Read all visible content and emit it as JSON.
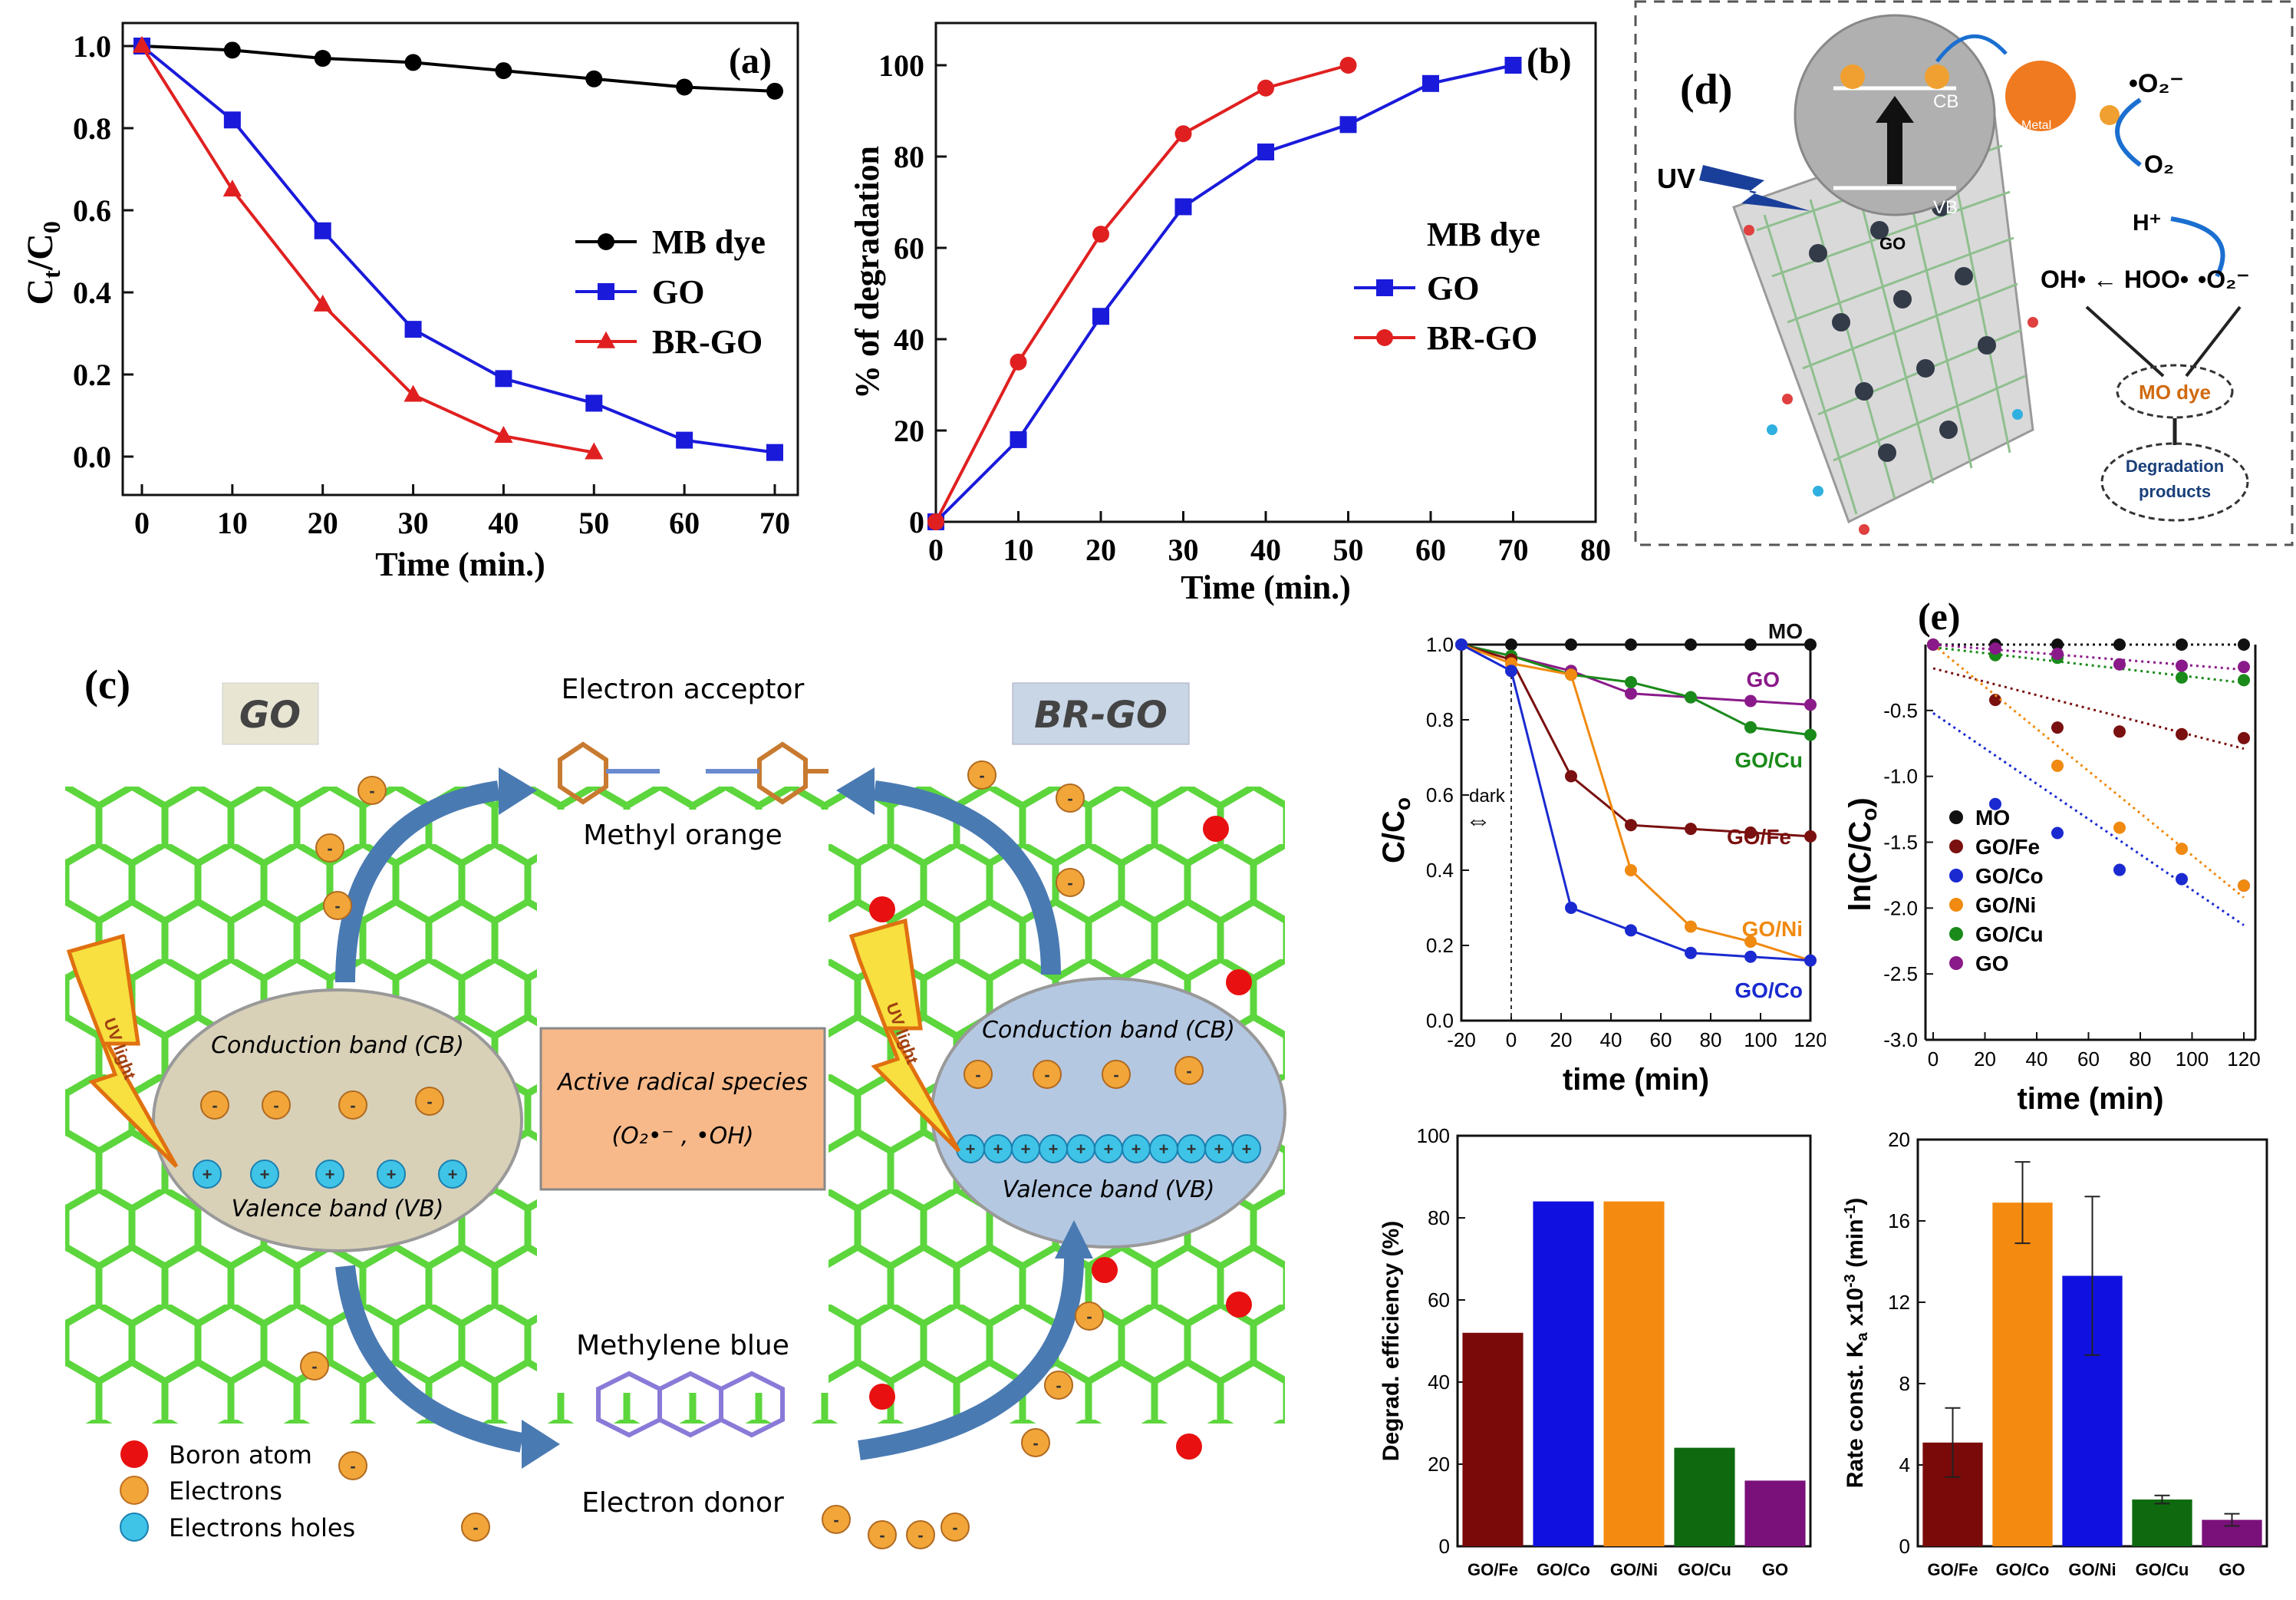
{
  "chart_data": [
    {
      "id": "a",
      "type": "line",
      "panel_label": "(a)",
      "xlabel": "Time (min.)",
      "ylabel_main": "C",
      "ylabel_sub1": "t",
      "ylabel_mid": "/C",
      "ylabel_sub2": "0",
      "xlim": [
        0,
        70
      ],
      "ylim": [
        0.0,
        1.0
      ],
      "xticks": [
        "0",
        "10",
        "20",
        "30",
        "40",
        "50",
        "60",
        "70"
      ],
      "yticks": [
        "0.0",
        "0.2",
        "0.4",
        "0.6",
        "0.8",
        "1.0"
      ],
      "legend_position": "center-right",
      "series": [
        {
          "name": "MB dye",
          "color": "#000000",
          "marker": "circle",
          "x": [
            0,
            10,
            20,
            30,
            40,
            50,
            60,
            70
          ],
          "y": [
            1.0,
            0.99,
            0.97,
            0.96,
            0.94,
            0.92,
            0.9,
            0.89
          ]
        },
        {
          "name": "GO",
          "color": "#1a1adb",
          "marker": "square",
          "x": [
            0,
            10,
            20,
            30,
            40,
            50,
            60,
            70
          ],
          "y": [
            1.0,
            0.82,
            0.55,
            0.31,
            0.19,
            0.13,
            0.04,
            0.01
          ]
        },
        {
          "name": "BR-GO",
          "color": "#e02020",
          "marker": "triangle",
          "x": [
            0,
            10,
            20,
            30,
            40,
            50
          ],
          "y": [
            1.0,
            0.65,
            0.37,
            0.15,
            0.05,
            0.01
          ]
        }
      ]
    },
    {
      "id": "b",
      "type": "line",
      "panel_label": "(b)",
      "xlabel": "Time (min.)",
      "ylabel": "% of degradation",
      "xlim": [
        0,
        80
      ],
      "ylim": [
        0,
        100
      ],
      "xticks": [
        "0",
        "10",
        "20",
        "30",
        "40",
        "50",
        "60",
        "70",
        "80"
      ],
      "yticks": [
        "0",
        "20",
        "40",
        "60",
        "80",
        "100"
      ],
      "legend_title": "MB dye",
      "legend_position": "center-right",
      "series": [
        {
          "name": "GO",
          "color": "#1a1adb",
          "marker": "square",
          "x": [
            0,
            10,
            20,
            30,
            40,
            50,
            60,
            70
          ],
          "y": [
            0,
            18,
            45,
            69,
            81,
            87,
            96,
            100
          ]
        },
        {
          "name": "BR-GO",
          "color": "#e02020",
          "marker": "circle",
          "x": [
            0,
            10,
            20,
            30,
            40,
            50
          ],
          "y": [
            0,
            35,
            63,
            85,
            95,
            100
          ]
        }
      ]
    },
    {
      "id": "e1",
      "type": "line",
      "xlabel": "time (min)",
      "ylabel_main": "C/C",
      "ylabel_sub": "o",
      "xlim": [
        -20,
        120
      ],
      "ylim": [
        0.0,
        1.0
      ],
      "xticks": [
        "-20",
        "0",
        "20",
        "40",
        "60",
        "80",
        "100",
        "120"
      ],
      "yticks": [
        "0.0",
        "0.2",
        "0.4",
        "0.6",
        "0.8",
        "1.0"
      ],
      "annotation": "dark",
      "series": [
        {
          "name": "MO",
          "color": "#111111",
          "x": [
            -20,
            0,
            24,
            48,
            72,
            96,
            120
          ],
          "y": [
            1.0,
            1.0,
            1.0,
            1.0,
            1.0,
            1.0,
            1.0
          ]
        },
        {
          "name": "GO",
          "color": "#8a1a8a",
          "x": [
            -20,
            0,
            24,
            48,
            72,
            96,
            120
          ],
          "y": [
            1.0,
            0.97,
            0.93,
            0.87,
            0.86,
            0.85,
            0.84
          ]
        },
        {
          "name": "GO/Cu",
          "color": "#1a8a1a",
          "x": [
            -20,
            0,
            24,
            48,
            72,
            96,
            120
          ],
          "y": [
            1.0,
            0.97,
            0.92,
            0.9,
            0.86,
            0.78,
            0.76
          ]
        },
        {
          "name": "GO/Fe",
          "color": "#7a1010",
          "x": [
            -20,
            0,
            24,
            48,
            72,
            96,
            120
          ],
          "y": [
            1.0,
            0.96,
            0.65,
            0.52,
            0.51,
            0.5,
            0.49
          ]
        },
        {
          "name": "GO/Ni",
          "color": "#f08a10",
          "x": [
            -20,
            0,
            24,
            48,
            72,
            96,
            120
          ],
          "y": [
            1.0,
            0.95,
            0.92,
            0.4,
            0.25,
            0.21,
            0.16
          ]
        },
        {
          "name": "GO/Co",
          "color": "#1a2ad0",
          "x": [
            -20,
            0,
            24,
            48,
            72,
            96,
            120
          ],
          "y": [
            1.0,
            0.93,
            0.3,
            0.24,
            0.18,
            0.17,
            0.16
          ]
        }
      ]
    },
    {
      "id": "e2",
      "type": "scatter",
      "panel_label": "(e)",
      "xlabel": "time (min)",
      "ylabel_main": "ln(C/C",
      "ylabel_sub": "o",
      "ylabel_end": ")",
      "xlim": [
        0,
        120
      ],
      "ylim": [
        -3.0,
        0.0
      ],
      "xticks": [
        "0",
        "20",
        "40",
        "60",
        "80",
        "100",
        "120"
      ],
      "yticks": [
        "-0.5",
        "-1.0",
        "-1.5",
        "-2.0",
        "-2.5",
        "-3.0"
      ],
      "legend_position": "bottom-left",
      "series": [
        {
          "name": "MO",
          "color": "#111111",
          "x": [
            0,
            24,
            48,
            72,
            96,
            120
          ],
          "y": [
            0.0,
            0.0,
            0.0,
            0.0,
            0.0,
            0.0
          ],
          "fit": [
            0.0,
            0.0
          ]
        },
        {
          "name": "GO/Fe",
          "color": "#7a1010",
          "x": [
            0,
            24,
            48,
            72,
            96,
            120
          ],
          "y": [
            0.0,
            -0.42,
            -0.63,
            -0.66,
            -0.68,
            -0.71
          ],
          "fit": [
            -0.18,
            -0.79
          ]
        },
        {
          "name": "GO/Co",
          "color": "#1a2ad0",
          "x": [
            24,
            48,
            72,
            96,
            120
          ],
          "y": [
            -1.21,
            -1.43,
            -1.71,
            -1.78,
            -1.83
          ],
          "fit": [
            -0.52,
            -2.13
          ]
        },
        {
          "name": "GO/Ni",
          "color": "#f08a10",
          "x": [
            0,
            24,
            48,
            72,
            96,
            120
          ],
          "y": [
            0.0,
            -0.08,
            -0.92,
            -1.39,
            -1.55,
            -1.83
          ],
          "fit": [
            0.0,
            -1.92
          ]
        },
        {
          "name": "GO/Cu",
          "color": "#1a8a1a",
          "x": [
            0,
            24,
            48,
            72,
            96,
            120
          ],
          "y": [
            0.0,
            -0.08,
            -0.1,
            -0.15,
            -0.25,
            -0.27
          ],
          "fit": [
            -0.02,
            -0.29
          ]
        },
        {
          "name": "GO",
          "color": "#8a1a8a",
          "x": [
            0,
            24,
            48,
            72,
            96,
            120
          ],
          "y": [
            0.0,
            -0.03,
            -0.07,
            -0.15,
            -0.16,
            -0.17
          ],
          "fit": [
            0.0,
            -0.19
          ]
        }
      ]
    },
    {
      "id": "e3",
      "type": "bar",
      "ylabel": "Degrad. efficiency (%)",
      "ylim": [
        0,
        100
      ],
      "yticks": [
        "0",
        "20",
        "40",
        "60",
        "80",
        "100"
      ],
      "categories": [
        "GO/Fe",
        "GO/Co",
        "GO/Ni",
        "GO/Cu",
        "GO"
      ],
      "values": [
        52,
        84,
        84,
        24,
        16
      ],
      "colors": [
        "#7a0a0a",
        "#1010e0",
        "#f58a10",
        "#0f6a0f",
        "#7a107a"
      ]
    },
    {
      "id": "e4",
      "type": "bar",
      "ylabel_main": "Rate const. K",
      "ylabel_sub": "a",
      "ylabel_mid": " x10",
      "ylabel_sup1": "-3",
      "ylabel_end": " (min",
      "ylabel_sup2": "-1",
      "ylabel_close": ")",
      "ylim": [
        0,
        20
      ],
      "yticks": [
        "0",
        "4",
        "8",
        "12",
        "16",
        "20"
      ],
      "categories": [
        "GO/Fe",
        "GO/Co",
        "GO/Ni",
        "GO/Cu",
        "GO"
      ],
      "values": [
        5.1,
        16.9,
        13.3,
        2.3,
        1.3
      ],
      "errors": [
        1.7,
        2.0,
        3.9,
        0.2,
        0.3
      ],
      "colors": [
        "#7a0a0a",
        "#f58a10",
        "#1010e0",
        "#0f6a0f",
        "#7a107a"
      ]
    }
  ],
  "diagram_c": {
    "panel_label": "(c)",
    "go_label": "GO",
    "brgo_label": "BR-GO",
    "electron_acceptor": "Electron acceptor",
    "methyl_orange": "Methyl orange",
    "methylene_blue": "Methylene blue",
    "electron_donor": "Electron donor",
    "uv_light": "UV light",
    "cb_label": "Conduction band (CB)",
    "vb_label": "Valence band (VB)",
    "radical_title": "Active radical species",
    "radical_formula": "(O₂•⁻ , •OH)",
    "legend": [
      "Boron atom",
      "Electrons",
      "Electrons holes"
    ],
    "colors": {
      "lattice": "#5cd63c",
      "boron": "#e81010",
      "electron": "#f2a63a",
      "hole": "#3fc4e8"
    }
  },
  "diagram_d": {
    "panel_label": "(d)",
    "uv": "UV",
    "cb": "CB",
    "vb": "VB",
    "go": "GO",
    "metal": "Metal",
    "o2_radical": "•O₂⁻",
    "o2": "O₂",
    "h_plus": "H⁺",
    "oh_hoo": "OH• ← HOO•",
    "o2_radical2": "•O₂⁻",
    "mo_dye": "MO dye",
    "degradation_products": "Degradation products"
  }
}
